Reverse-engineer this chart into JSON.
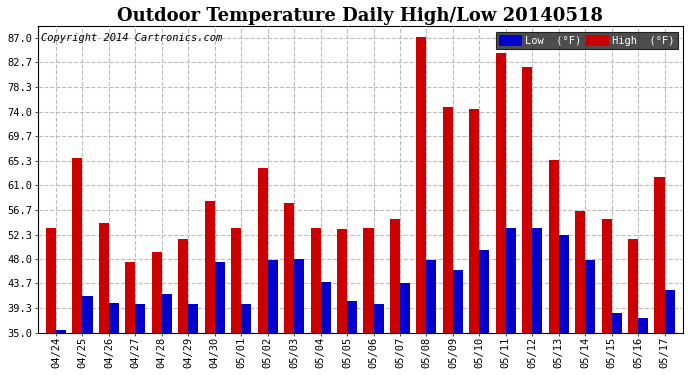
{
  "title": "Outdoor Temperature Daily High/Low 20140518",
  "copyright": "Copyright 2014 Cartronics.com",
  "dates": [
    "04/24",
    "04/25",
    "04/26",
    "04/27",
    "04/28",
    "04/29",
    "04/30",
    "05/01",
    "05/02",
    "05/03",
    "05/04",
    "05/05",
    "05/06",
    "05/07",
    "05/08",
    "05/09",
    "05/10",
    "05/11",
    "05/12",
    "05/13",
    "05/14",
    "05/15",
    "05/16",
    "05/17"
  ],
  "highs": [
    53.5,
    65.8,
    54.3,
    47.5,
    49.3,
    51.5,
    58.3,
    53.5,
    64.0,
    57.8,
    53.5,
    53.3,
    53.5,
    55.0,
    87.2,
    74.8,
    74.5,
    84.3,
    81.8,
    65.5,
    56.5,
    55.0,
    51.5,
    62.5
  ],
  "lows": [
    35.5,
    41.5,
    40.3,
    40.0,
    41.8,
    40.0,
    47.5,
    40.0,
    47.8,
    48.0,
    44.0,
    40.5,
    40.0,
    43.8,
    47.8,
    46.0,
    49.5,
    53.5,
    53.5,
    52.3,
    47.8,
    38.5,
    37.5,
    42.5
  ],
  "low_color": "#0000cc",
  "high_color": "#cc0000",
  "bg_color": "#ffffff",
  "grid_color": "#bbbbbb",
  "ylim_min": 35.0,
  "ylim_max": 89.0,
  "yticks": [
    35.0,
    39.3,
    43.7,
    48.0,
    52.3,
    56.7,
    61.0,
    65.3,
    69.7,
    74.0,
    78.3,
    82.7,
    87.0
  ],
  "title_fontsize": 13,
  "copyright_fontsize": 7.5,
  "tick_fontsize": 7.5
}
